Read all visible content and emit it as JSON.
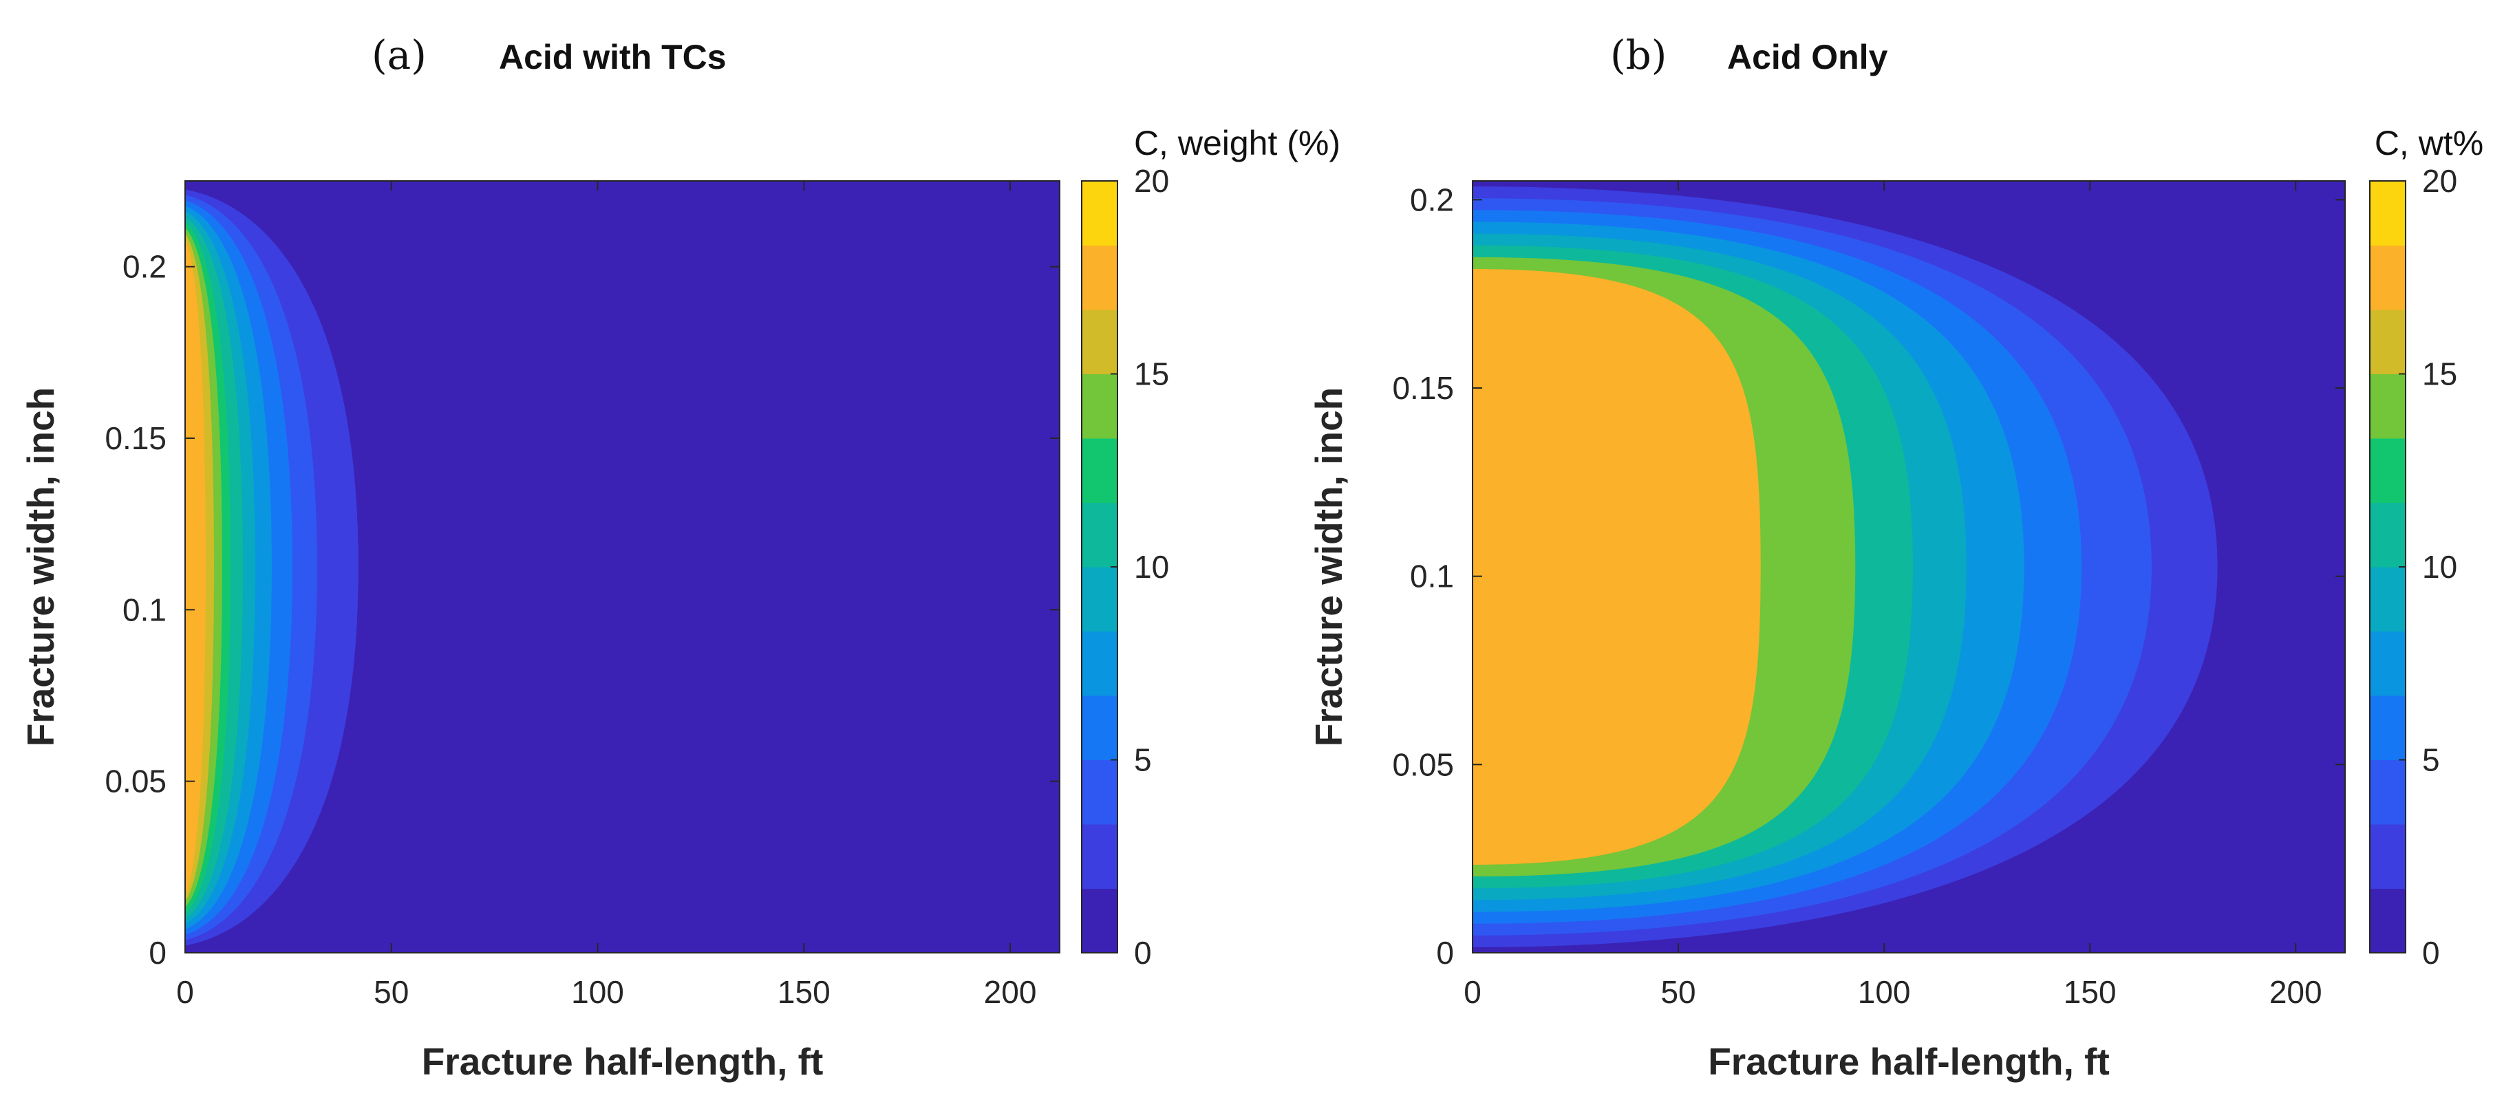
{
  "colors": {
    "levels": [
      "#3b22b4",
      "#3c3ee0",
      "#2f58f2",
      "#1677f5",
      "#0a95e0",
      "#08a9c1",
      "#0db99a",
      "#11c66f",
      "#73c53a",
      "#d1bb29",
      "#fbb129",
      "#fcd50e"
    ]
  },
  "chart_data": [
    {
      "type": "contourf",
      "panel_letter": "(a)",
      "title": "Acid with TCs",
      "xlabel": "Fracture half-length, ft",
      "ylabel": "Fracture width, inch",
      "colorbar_label": "C, weight (%)",
      "xlim": [
        0,
        212
      ],
      "ylim": [
        0,
        0.225
      ],
      "x_ticks": [
        "0",
        "50",
        "100",
        "150",
        "200"
      ],
      "x_tick_values": [
        0,
        50,
        100,
        150,
        200
      ],
      "y_ticks": [
        "0",
        "0.05",
        "0.1",
        "0.15",
        "0.2"
      ],
      "y_tick_values": [
        0,
        0.05,
        0.1,
        0.15,
        0.2
      ],
      "colorbar_range": [
        0,
        20
      ],
      "colorbar_ticks": [
        "0",
        "5",
        "10",
        "15",
        "20"
      ],
      "colorbar_tick_values": [
        0,
        5,
        10,
        15,
        20
      ],
      "background_level": 0,
      "contour_levels": [
        {
          "level": 1,
          "c": 1.7,
          "extent_ft": 42
        },
        {
          "level": 2,
          "c": 3.3,
          "extent_ft": 32
        },
        {
          "level": 3,
          "c": 5.0,
          "extent_ft": 26
        },
        {
          "level": 4,
          "c": 6.7,
          "extent_ft": 21
        },
        {
          "level": 5,
          "c": 8.3,
          "extent_ft": 17
        },
        {
          "level": 6,
          "c": 10.0,
          "extent_ft": 14
        },
        {
          "level": 7,
          "c": 11.7,
          "extent_ft": 11
        },
        {
          "level": 8,
          "c": 13.3,
          "extent_ft": 9
        },
        {
          "level": 9,
          "c": 15.0,
          "extent_ft": 7
        },
        {
          "level": 10,
          "c": 16.7,
          "extent_ft": 5
        }
      ]
    },
    {
      "type": "contourf",
      "panel_letter": "(b)",
      "title": "Acid Only",
      "xlabel": "Fracture half-length, ft",
      "ylabel": "Fracture width, inch",
      "colorbar_label": "C, wt%",
      "xlim": [
        0,
        212
      ],
      "ylim": [
        0,
        0.205
      ],
      "x_ticks": [
        "0",
        "50",
        "100",
        "150",
        "200"
      ],
      "x_tick_values": [
        0,
        50,
        100,
        150,
        200
      ],
      "y_ticks": [
        "0",
        "0.05",
        "0.1",
        "0.15",
        "0.2"
      ],
      "y_tick_values": [
        0,
        0.05,
        0.1,
        0.15,
        0.2
      ],
      "colorbar_range": [
        0,
        20
      ],
      "colorbar_ticks": [
        "0",
        "5",
        "10",
        "15",
        "20"
      ],
      "colorbar_tick_values": [
        0,
        5,
        10,
        15,
        20
      ],
      "background_level": 0,
      "contour_levels": [
        {
          "level": 1,
          "c": 1.7,
          "extent_ft": 181
        },
        {
          "level": 2,
          "c": 3.3,
          "extent_ft": 165
        },
        {
          "level": 3,
          "c": 5.0,
          "extent_ft": 148
        },
        {
          "level": 4,
          "c": 6.7,
          "extent_ft": 134
        },
        {
          "level": 5,
          "c": 8.3,
          "extent_ft": 120
        },
        {
          "level": 6,
          "c": 10.0,
          "extent_ft": 107
        },
        {
          "level": 8,
          "c": 13.3,
          "extent_ft": 93
        },
        {
          "level": 10,
          "c": 16.7,
          "extent_ft": 70
        }
      ]
    }
  ]
}
